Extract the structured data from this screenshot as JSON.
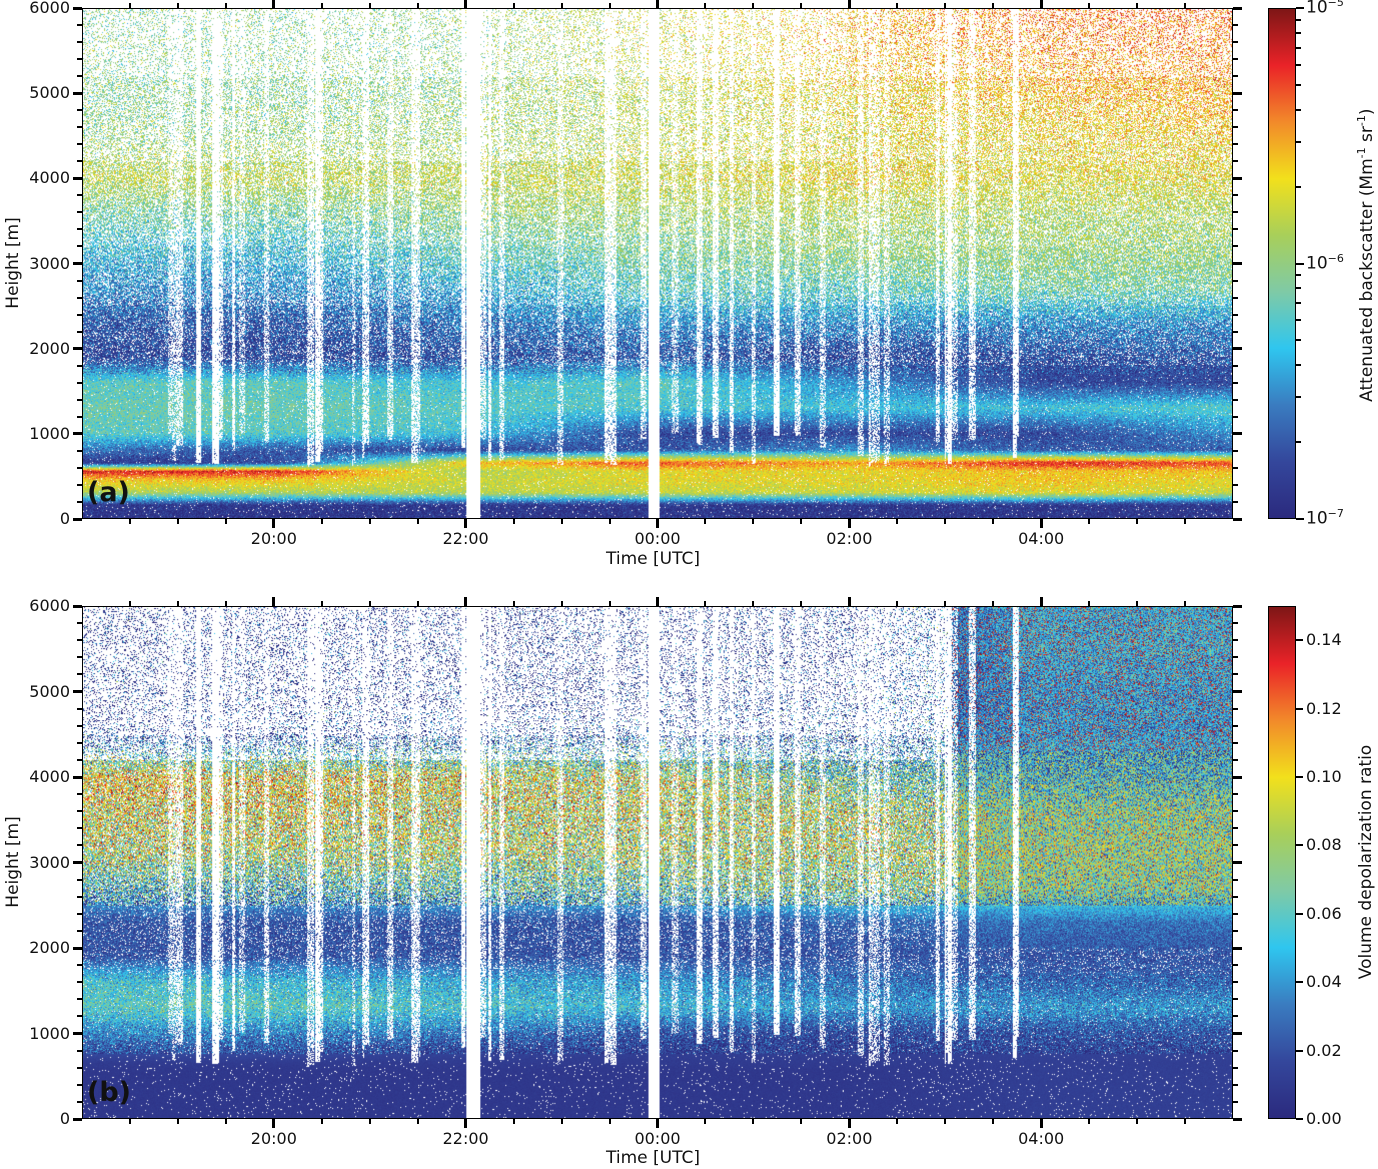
{
  "chart_data": [
    {
      "type": "heatmap",
      "panel_label": "(a)",
      "xlabel": "Time [UTC]",
      "ylabel": "Height [m]",
      "colorbar_label": "Attenuated  backscatter (Mm",
      "colorbar_label_sup1": "-1",
      "colorbar_label_mid": " sr",
      "colorbar_label_sup2": "-1",
      "colorbar_label_end": ")",
      "colorbar_scale": "log",
      "colorbar_range": [
        1e-07,
        1e-05
      ],
      "colorbar_ticks": [
        {
          "value": 1e-05,
          "base": "10",
          "exp": "−5"
        },
        {
          "value": 1e-06,
          "base": "10",
          "exp": "−6"
        },
        {
          "value": 1e-07,
          "base": "10",
          "exp": "−7"
        }
      ],
      "xlim_hours": [
        18,
        30
      ],
      "ylim": [
        0,
        6000
      ],
      "x_ticks": [
        {
          "hour": 20,
          "label": "20:00"
        },
        {
          "hour": 22,
          "label": "22:00"
        },
        {
          "hour": 24,
          "label": "00:00"
        },
        {
          "hour": 26,
          "label": "02:00"
        },
        {
          "hour": 28,
          "label": "04:00"
        }
      ],
      "y_ticks": [
        {
          "value": 0,
          "label": "0"
        },
        {
          "value": 1000,
          "label": "1000"
        },
        {
          "value": 2000,
          "label": "2000"
        },
        {
          "value": 3000,
          "label": "3000"
        },
        {
          "value": 4000,
          "label": "4000"
        },
        {
          "value": 5000,
          "label": "5000"
        },
        {
          "value": 6000,
          "label": "6000"
        }
      ],
      "data_gaps_hours": [
        [
          22.0,
          22.15
        ],
        [
          23.91,
          24.02
        ]
      ],
      "grid_times_hours": [
        18,
        20,
        22,
        24,
        26,
        28,
        30
      ],
      "grid_heights_m": [
        50,
        150,
        300,
        450,
        550,
        650,
        800,
        1000,
        1300,
        1600,
        1900,
        2300,
        2700,
        3100,
        3600,
        4000,
        4500,
        5000,
        5500,
        6000
      ],
      "grid_values_log10": [
        [
          -6.9,
          -6.9,
          -5.9,
          -5.6,
          -5.2,
          -6.9,
          -6.6,
          -6.2,
          -6.15,
          -6.2,
          -6.8,
          -6.7,
          -6.5,
          -6.35,
          -6.1,
          -5.85,
          -6.0,
          -6.05,
          -6.05,
          -6.05
        ],
        [
          -6.9,
          -6.9,
          -5.9,
          -5.6,
          -5.2,
          -6.8,
          -6.7,
          -6.2,
          -6.15,
          -6.2,
          -6.8,
          -6.7,
          -6.5,
          -6.35,
          -6.1,
          -5.85,
          -6.0,
          -6.05,
          -6.05,
          -6.05
        ],
        [
          -6.9,
          -6.9,
          -5.85,
          -5.8,
          -5.9,
          -5.6,
          -6.8,
          -6.3,
          -6.2,
          -6.3,
          -6.75,
          -6.6,
          -6.4,
          -6.2,
          -6.0,
          -5.85,
          -5.95,
          -6.0,
          -6.0,
          -6.0
        ],
        [
          -6.9,
          -6.9,
          -5.8,
          -5.7,
          -5.7,
          -5.3,
          -6.7,
          -6.8,
          -6.25,
          -6.2,
          -6.7,
          -6.5,
          -6.2,
          -6.1,
          -5.95,
          -5.8,
          -5.85,
          -5.85,
          -5.8,
          -5.8
        ],
        [
          -6.9,
          -6.9,
          -5.8,
          -5.7,
          -5.7,
          -5.5,
          -6.5,
          -6.8,
          -6.3,
          -6.5,
          -6.8,
          -6.5,
          -6.2,
          -6.0,
          -5.9,
          -5.7,
          -5.75,
          -5.7,
          -5.6,
          -5.6
        ],
        [
          -6.9,
          -6.9,
          -5.7,
          -5.6,
          -5.6,
          -5.2,
          -6.7,
          -6.8,
          -6.3,
          -6.8,
          -6.75,
          -6.5,
          -6.1,
          -6.0,
          -5.9,
          -5.75,
          -5.7,
          -5.6,
          -5.5,
          -5.4
        ],
        [
          -6.9,
          -6.9,
          -5.8,
          -5.7,
          -5.6,
          -5.3,
          -6.7,
          -6.5,
          -6.2,
          -6.8,
          -6.7,
          -6.5,
          -6.1,
          -6.0,
          -5.9,
          -5.75,
          -5.65,
          -5.55,
          -5.45,
          -5.4
        ]
      ]
    },
    {
      "type": "heatmap",
      "panel_label": "(b)",
      "xlabel": "Time [UTC]",
      "ylabel": "Height [m]",
      "colorbar_label": "Volume depolarization ratio",
      "colorbar_scale": "linear",
      "colorbar_range": [
        0,
        0.15
      ],
      "colorbar_ticks": [
        {
          "value": 0.14,
          "label": "0.14"
        },
        {
          "value": 0.12,
          "label": "0.12"
        },
        {
          "value": 0.1,
          "label": "0.10"
        },
        {
          "value": 0.08,
          "label": "0.08"
        },
        {
          "value": 0.06,
          "label": "0.06"
        },
        {
          "value": 0.04,
          "label": "0.04"
        },
        {
          "value": 0.02,
          "label": "0.02"
        },
        {
          "value": 0.0,
          "label": "0.00"
        }
      ],
      "xlim_hours": [
        18,
        30
      ],
      "ylim": [
        0,
        6000
      ],
      "x_ticks": [
        {
          "hour": 20,
          "label": "20:00"
        },
        {
          "hour": 22,
          "label": "22:00"
        },
        {
          "hour": 24,
          "label": "00:00"
        },
        {
          "hour": 26,
          "label": "02:00"
        },
        {
          "hour": 28,
          "label": "04:00"
        }
      ],
      "y_ticks": [
        {
          "value": 0,
          "label": "0"
        },
        {
          "value": 1000,
          "label": "1000"
        },
        {
          "value": 2000,
          "label": "2000"
        },
        {
          "value": 3000,
          "label": "3000"
        },
        {
          "value": 4000,
          "label": "4000"
        },
        {
          "value": 5000,
          "label": "5000"
        },
        {
          "value": 6000,
          "label": "6000"
        }
      ],
      "data_gaps_hours": [
        [
          22.0,
          22.15
        ],
        [
          23.91,
          24.02
        ]
      ],
      "grid_times_hours": [
        18,
        20,
        22,
        24,
        26,
        28,
        30
      ],
      "grid_heights_m": [
        50,
        150,
        300,
        450,
        550,
        650,
        800,
        1000,
        1300,
        1600,
        1900,
        2300,
        2700,
        3100,
        3600,
        4000,
        4500,
        5000,
        5500,
        6000
      ],
      "grid_values": [
        [
          0.008,
          0.008,
          0.008,
          0.008,
          0.008,
          0.01,
          0.02,
          0.035,
          0.06,
          0.055,
          0.02,
          0.02,
          0.05,
          0.08,
          0.09,
          0.1,
          0.01,
          0.005,
          0.005,
          0.005
        ],
        [
          0.008,
          0.008,
          0.008,
          0.008,
          0.008,
          0.01,
          0.02,
          0.035,
          0.06,
          0.05,
          0.02,
          0.02,
          0.05,
          0.08,
          0.09,
          0.095,
          0.01,
          0.005,
          0.005,
          0.005
        ],
        [
          0.008,
          0.008,
          0.008,
          0.008,
          0.008,
          0.01,
          0.015,
          0.03,
          0.055,
          0.045,
          0.02,
          0.02,
          0.055,
          0.08,
          0.085,
          0.09,
          0.015,
          0.005,
          0.005,
          0.005
        ],
        [
          0.008,
          0.008,
          0.008,
          0.008,
          0.008,
          0.01,
          0.012,
          0.02,
          0.05,
          0.04,
          0.02,
          0.02,
          0.06,
          0.08,
          0.085,
          0.085,
          0.02,
          0.008,
          0.005,
          0.005
        ],
        [
          0.008,
          0.008,
          0.008,
          0.008,
          0.008,
          0.01,
          0.012,
          0.015,
          0.04,
          0.03,
          0.02,
          0.025,
          0.07,
          0.08,
          0.08,
          0.06,
          0.02,
          0.01,
          0.008,
          0.008
        ],
        [
          0.012,
          0.012,
          0.012,
          0.012,
          0.012,
          0.012,
          0.014,
          0.02,
          0.04,
          0.025,
          0.02,
          0.03,
          0.07,
          0.075,
          0.07,
          0.05,
          0.04,
          0.04,
          0.045,
          0.045
        ],
        [
          0.012,
          0.012,
          0.012,
          0.012,
          0.012,
          0.012,
          0.014,
          0.02,
          0.04,
          0.025,
          0.02,
          0.03,
          0.07,
          0.075,
          0.07,
          0.05,
          0.04,
          0.04,
          0.045,
          0.045
        ]
      ]
    }
  ],
  "colormap": [
    "#2b2a7e",
    "#34479c",
    "#3a7cc0",
    "#2fc6ef",
    "#7fcaa6",
    "#a8cf5a",
    "#f2e01c",
    "#f28a2a",
    "#ea2328",
    "#7e1616"
  ]
}
